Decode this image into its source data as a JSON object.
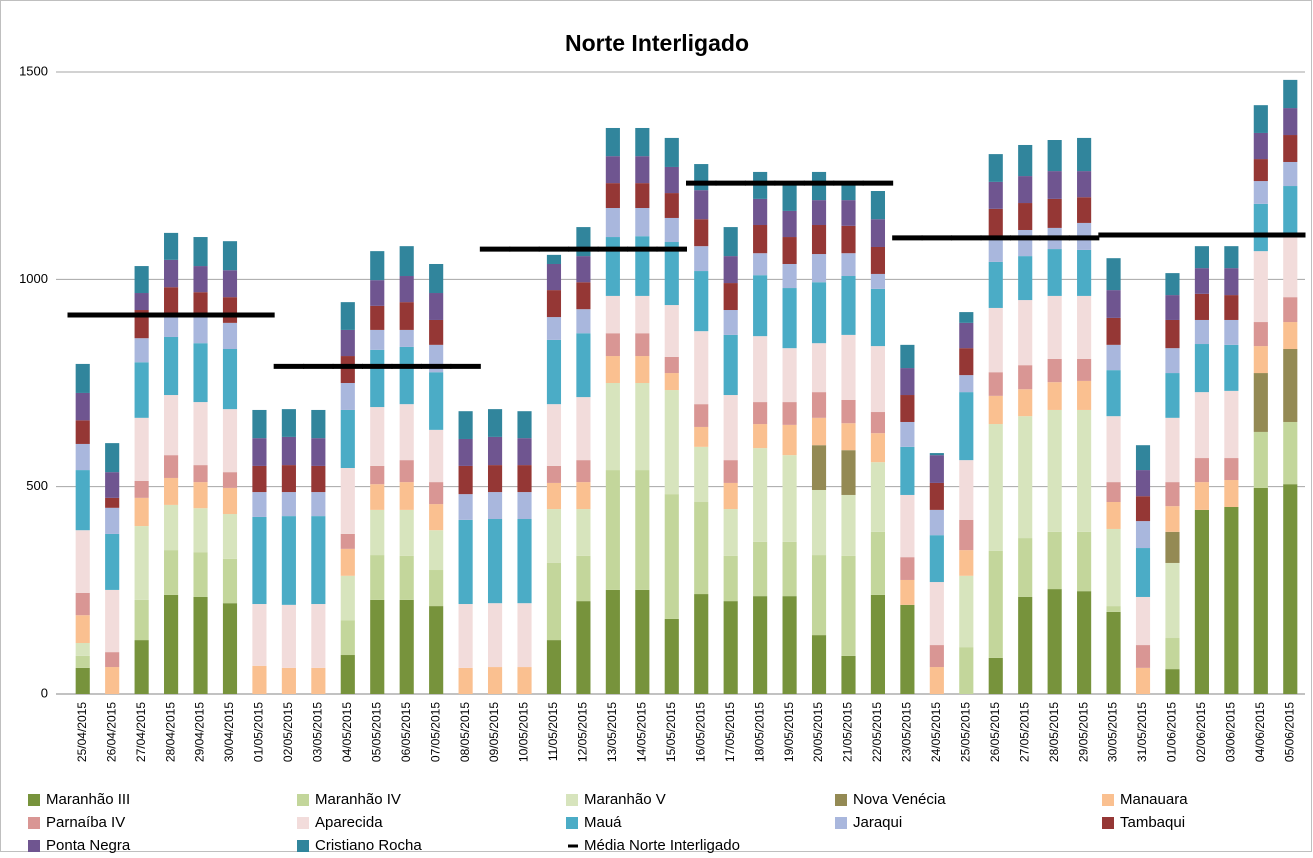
{
  "chart_data": {
    "type": "bar",
    "stacked": true,
    "title": "Norte Interligado",
    "categories": [
      "25/04/2015",
      "26/04/2015",
      "27/04/2015",
      "28/04/2015",
      "29/04/2015",
      "30/04/2015",
      "01/05/2015",
      "02/05/2015",
      "03/05/2015",
      "04/05/2015",
      "05/05/2015",
      "06/05/2015",
      "07/05/2015",
      "08/05/2015",
      "09/05/2015",
      "10/05/2015",
      "11/05/2015",
      "12/05/2015",
      "13/05/2015",
      "14/05/2015",
      "15/05/2015",
      "16/05/2015",
      "17/05/2015",
      "18/05/2015",
      "19/05/2015",
      "20/05/2015",
      "21/05/2015",
      "22/05/2015",
      "23/05/2015",
      "24/05/2015",
      "25/05/2015",
      "26/05/2015",
      "27/05/2015",
      "28/05/2015",
      "29/05/2015",
      "30/05/2015",
      "31/05/2015",
      "01/06/2015",
      "02/06/2015",
      "03/06/2015",
      "04/06/2015",
      "05/06/2015"
    ],
    "ylim": [
      0,
      1500
    ],
    "yticks": [
      0,
      500,
      1000,
      1500
    ],
    "grid": true,
    "legend": "bottom",
    "series": [
      {
        "name": "Maranhão III",
        "color": "#77933c",
        "values": [
          63,
          0,
          130,
          239,
          234,
          219,
          0,
          0,
          0,
          94,
          227,
          227,
          212,
          0,
          0,
          0,
          130,
          224,
          251,
          251,
          181,
          241,
          224,
          236,
          236,
          142,
          92,
          239,
          215,
          0,
          0,
          87,
          234,
          253,
          248,
          198,
          0,
          60,
          444,
          451,
          497,
          506
        ]
      },
      {
        "name": "Maranhão IV",
        "color": "#c3d69b",
        "values": [
          29,
          0,
          97,
          108,
          108,
          107,
          0,
          0,
          0,
          84,
          108,
          106,
          87,
          0,
          0,
          0,
          186,
          109,
          289,
          289,
          301,
          222,
          109,
          131,
          131,
          193,
          241,
          152,
          0,
          0,
          113,
          258,
          142,
          138,
          143,
          14,
          0,
          75,
          0,
          0,
          135,
          150
        ]
      },
      {
        "name": "Maranhão V",
        "color": "#d7e4bd",
        "values": [
          31,
          0,
          178,
          109,
          106,
          108,
          0,
          0,
          0,
          107,
          109,
          111,
          96,
          0,
          0,
          0,
          130,
          113,
          210,
          210,
          251,
          133,
          113,
          226,
          209,
          157,
          147,
          168,
          0,
          0,
          172,
          306,
          294,
          294,
          294,
          186,
          0,
          181,
          0,
          0,
          0,
          0
        ]
      },
      {
        "name": "Nova Venécia",
        "color": "#948a54",
        "values": [
          0,
          0,
          0,
          0,
          0,
          0,
          0,
          0,
          0,
          0,
          0,
          0,
          0,
          0,
          0,
          0,
          0,
          0,
          0,
          0,
          0,
          0,
          0,
          0,
          0,
          108,
          108,
          0,
          0,
          0,
          0,
          0,
          0,
          0,
          0,
          0,
          0,
          75,
          0,
          0,
          142,
          176
        ]
      },
      {
        "name": "Manauara",
        "color": "#fac090",
        "values": [
          67,
          65,
          68,
          65,
          63,
          63,
          68,
          63,
          63,
          65,
          62,
          67,
          63,
          63,
          65,
          65,
          63,
          65,
          65,
          65,
          41,
          48,
          63,
          58,
          73,
          66,
          65,
          70,
          60,
          65,
          62,
          68,
          65,
          67,
          70,
          65,
          63,
          62,
          67,
          65,
          65,
          65
        ]
      },
      {
        "name": "Parnaíba IV",
        "color": "#d99694",
        "values": [
          54,
          36,
          41,
          55,
          41,
          38,
          0,
          0,
          0,
          36,
          44,
          53,
          53,
          0,
          0,
          0,
          41,
          53,
          55,
          55,
          39,
          55,
          55,
          53,
          55,
          62,
          56,
          51,
          55,
          53,
          73,
          57,
          58,
          56,
          53,
          48,
          55,
          58,
          58,
          53,
          58,
          60
        ]
      },
      {
        "name": "Aparecida",
        "color": "#f2dcdb",
        "values": [
          151,
          150,
          152,
          145,
          152,
          152,
          149,
          152,
          154,
          159,
          142,
          135,
          126,
          154,
          154,
          154,
          149,
          152,
          90,
          90,
          125,
          176,
          157,
          159,
          130,
          118,
          157,
          159,
          150,
          152,
          144,
          155,
          157,
          152,
          152,
          159,
          116,
          155,
          159,
          162,
          171,
          147
        ]
      },
      {
        "name": "Mauá",
        "color": "#4bacc6",
        "values": [
          145,
          135,
          134,
          140,
          142,
          145,
          210,
          214,
          212,
          140,
          138,
          138,
          139,
          203,
          203,
          203,
          155,
          154,
          142,
          144,
          152,
          145,
          145,
          147,
          145,
          147,
          142,
          138,
          116,
          113,
          164,
          111,
          106,
          113,
          111,
          111,
          118,
          108,
          116,
          111,
          114,
          121
        ]
      },
      {
        "name": "Jaraqui",
        "color": "#a9b7dd",
        "values": [
          63,
          63,
          58,
          53,
          66,
          63,
          60,
          58,
          58,
          65,
          48,
          41,
          66,
          62,
          65,
          65,
          55,
          58,
          70,
          68,
          58,
          60,
          60,
          53,
          58,
          68,
          55,
          36,
          60,
          61,
          41,
          60,
          63,
          51,
          65,
          61,
          65,
          60,
          58,
          60,
          55,
          58
        ]
      },
      {
        "name": "Tambaqui",
        "color": "#953735",
        "values": [
          57,
          24,
          68,
          67,
          57,
          62,
          63,
          65,
          63,
          65,
          58,
          67,
          60,
          68,
          65,
          65,
          65,
          65,
          60,
          60,
          60,
          65,
          65,
          68,
          65,
          70,
          66,
          65,
          65,
          65,
          65,
          68,
          65,
          70,
          62,
          65,
          60,
          68,
          63,
          60,
          53,
          65
        ]
      },
      {
        "name": "Ponta Negra",
        "color": "#6f5590",
        "values": [
          66,
          62,
          41,
          66,
          63,
          65,
          67,
          68,
          67,
          63,
          62,
          63,
          65,
          65,
          68,
          65,
          63,
          63,
          65,
          65,
          63,
          70,
          65,
          63,
          63,
          60,
          62,
          67,
          65,
          67,
          61,
          65,
          65,
          67,
          63,
          67,
          63,
          60,
          62,
          65,
          63,
          65
        ]
      },
      {
        "name": "Cristiano Rocha",
        "color": "#31859c",
        "values": [
          70,
          70,
          65,
          65,
          70,
          70,
          68,
          67,
          68,
          67,
          70,
          72,
          70,
          67,
          67,
          65,
          22,
          70,
          68,
          68,
          70,
          63,
          70,
          65,
          67,
          68,
          44,
          68,
          56,
          5,
          26,
          67,
          75,
          75,
          80,
          77,
          60,
          53,
          53,
          53,
          67,
          68
        ]
      },
      {
        "name": "Média Norte Interligado",
        "color": "#000000",
        "type": "line",
        "values": [
          914,
          914,
          914,
          914,
          914,
          914,
          914,
          790,
          790,
          790,
          790,
          790,
          790,
          790,
          1073,
          1073,
          1073,
          1073,
          1073,
          1073,
          1073,
          1232,
          1232,
          1232,
          1232,
          1232,
          1232,
          1232,
          1100,
          1100,
          1100,
          1100,
          1100,
          1100,
          1100,
          1107,
          1107,
          1107,
          1107,
          1107,
          1107,
          1107
        ]
      }
    ]
  }
}
